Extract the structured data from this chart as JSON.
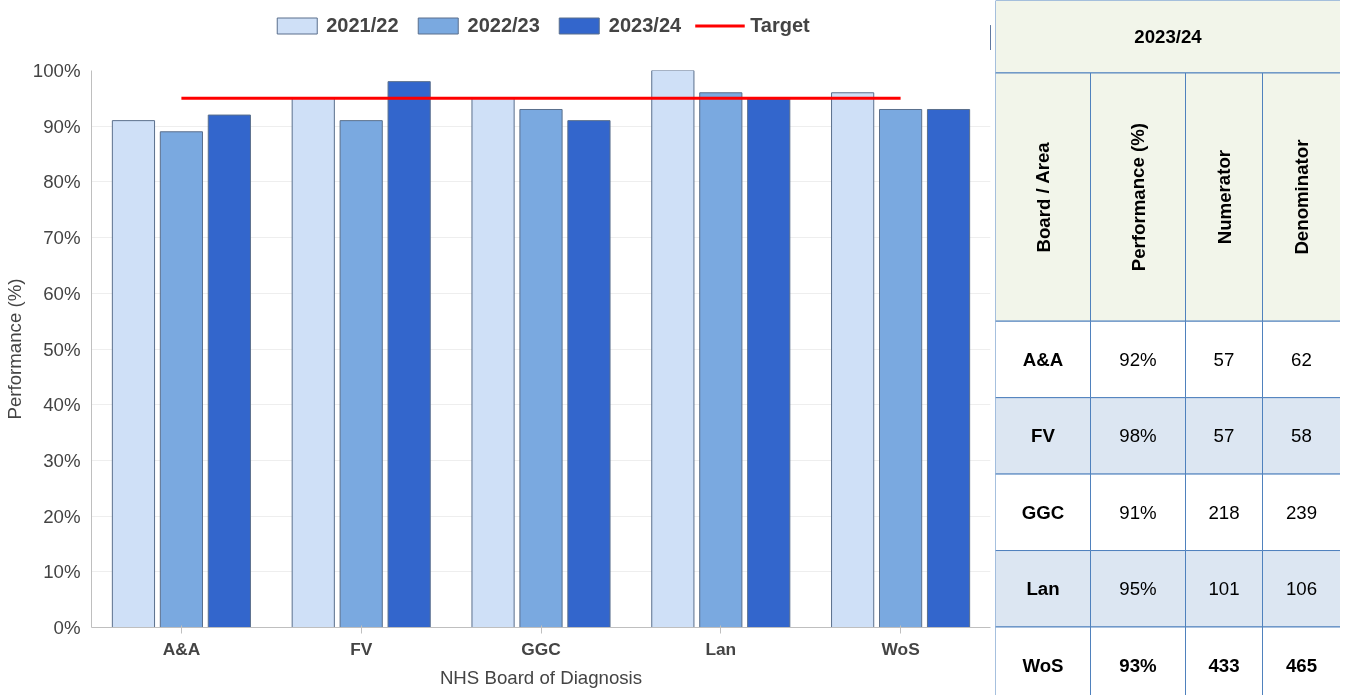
{
  "chart_data": [
    {
      "type": "bar",
      "xlabel": "NHS Board of Diagnosis",
      "ylabel": "Performance (%)",
      "categories": [
        "A&A",
        "FV",
        "GGC",
        "Lan",
        "WoS"
      ],
      "series": [
        {
          "name": "2021/22",
          "color": "#cfe0f7",
          "values": [
            91,
            95,
            95,
            100,
            96
          ]
        },
        {
          "name": "2022/23",
          "color": "#7aa9e0",
          "values": [
            89,
            91,
            93,
            96,
            93
          ]
        },
        {
          "name": "2023/24",
          "color": "#3366cc",
          "values": [
            92,
            98,
            91,
            95,
            93
          ]
        },
        {
          "name": "Target",
          "type": "line",
          "color": "#ff0000",
          "values": [
            95,
            95,
            95,
            95,
            95
          ]
        }
      ],
      "ylim": [
        0,
        100
      ],
      "yticks": [
        {
          "value": 0,
          "label": "0%"
        },
        {
          "value": 10,
          "label": "10%"
        },
        {
          "value": 20,
          "label": "20%"
        },
        {
          "value": 30,
          "label": "30%"
        },
        {
          "value": 40,
          "label": "40%"
        },
        {
          "value": 50,
          "label": "50%"
        },
        {
          "value": 60,
          "label": "60%"
        },
        {
          "value": 70,
          "label": "70%"
        },
        {
          "value": 80,
          "label": "80%"
        },
        {
          "value": 90,
          "label": "90%"
        },
        {
          "value": 100,
          "label": "100%"
        }
      ],
      "grid": "y",
      "legend": "top"
    },
    {
      "type": "other",
      "title": "2023/24",
      "annotations": [
        "Board / Area",
        "Performance (%)",
        "Numerator",
        "Denominator",
        "A&A",
        "92%",
        "57",
        "62",
        "FV",
        "98%",
        "57",
        "58",
        "GGC",
        "91%",
        "218",
        "239",
        "Lan",
        "95%",
        "101",
        "106",
        "WoS",
        "93%",
        "433",
        "465"
      ]
    }
  ]
}
